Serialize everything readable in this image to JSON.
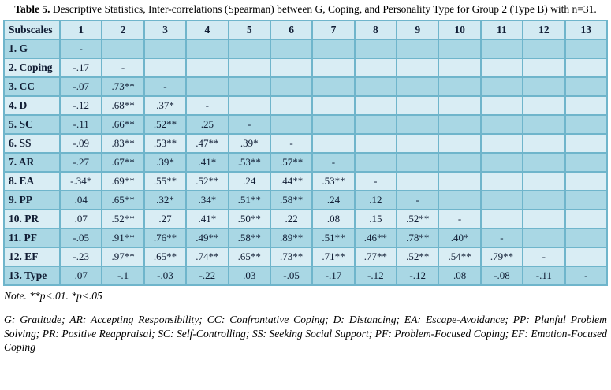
{
  "caption": {
    "label": "Table 5.",
    "text": "Descriptive Statistics, Inter-correlations (Spearman) between G, Coping, and Personality Type for Group 2 (Type B) with n=31."
  },
  "table": {
    "columns": [
      "Subscales",
      "1",
      "2",
      "3",
      "4",
      "5",
      "6",
      "7",
      "8",
      "9",
      "10",
      "11",
      "12",
      "13"
    ],
    "rows": [
      {
        "label": "1. G",
        "values": [
          "-",
          "",
          "",
          "",
          "",
          "",
          "",
          "",
          "",
          "",
          "",
          "",
          ""
        ]
      },
      {
        "label": "2. Coping",
        "values": [
          "-.17",
          "-",
          "",
          "",
          "",
          "",
          "",
          "",
          "",
          "",
          "",
          "",
          ""
        ]
      },
      {
        "label": "3. CC",
        "values": [
          "-.07",
          ".73**",
          "-",
          "",
          "",
          "",
          "",
          "",
          "",
          "",
          "",
          "",
          ""
        ]
      },
      {
        "label": "4. D",
        "values": [
          "-.12",
          ".68**",
          ".37*",
          "-",
          "",
          "",
          "",
          "",
          "",
          "",
          "",
          "",
          ""
        ]
      },
      {
        "label": "5. SC",
        "values": [
          "-.11",
          ".66**",
          ".52**",
          ".25",
          "-",
          "",
          "",
          "",
          "",
          "",
          "",
          "",
          ""
        ]
      },
      {
        "label": "6. SS",
        "values": [
          "-.09",
          ".83**",
          ".53**",
          ".47**",
          ".39*",
          "-",
          "",
          "",
          "",
          "",
          "",
          "",
          ""
        ]
      },
      {
        "label": "7. AR",
        "values": [
          "-.27",
          ".67**",
          ".39*",
          ".41*",
          ".53**",
          ".57**",
          "-",
          "",
          "",
          "",
          "",
          "",
          ""
        ]
      },
      {
        "label": "8. EA",
        "values": [
          "-.34*",
          ".69**",
          ".55**",
          ".52**",
          ".24",
          ".44**",
          ".53**",
          "-",
          "",
          "",
          "",
          "",
          ""
        ]
      },
      {
        "label": "9. PP",
        "values": [
          ".04",
          ".65**",
          ".32*",
          ".34*",
          ".51**",
          ".58**",
          ".24",
          ".12",
          "-",
          "",
          "",
          "",
          ""
        ]
      },
      {
        "label": "10. PR",
        "values": [
          ".07",
          ".52**",
          ".27",
          ".41*",
          ".50**",
          ".22",
          ".08",
          ".15",
          ".52**",
          "-",
          "",
          "",
          ""
        ]
      },
      {
        "label": "11. PF",
        "values": [
          "-.05",
          ".91**",
          ".76**",
          ".49**",
          ".58**",
          ".89**",
          ".51**",
          ".46**",
          ".78**",
          ".40*",
          "-",
          "",
          ""
        ]
      },
      {
        "label": "12. EF",
        "values": [
          "-.23",
          ".97**",
          ".65**",
          ".74**",
          ".65**",
          ".73**",
          ".71**",
          ".77**",
          ".52**",
          ".54**",
          ".79**",
          "-",
          ""
        ]
      },
      {
        "label": "13. Type",
        "values": [
          ".07",
          "-.1",
          "-.03",
          "-.22",
          ".03",
          "-.05",
          "-.17",
          "-.12",
          "-.12",
          ".08",
          "-.08",
          "-.11",
          "-"
        ]
      }
    ]
  },
  "note": "Note. **p<.01. *p<.05",
  "legend": "G: Gratitude; AR: Accepting Responsibility; CC: Confrontative Coping; D: Distancing; EA: Escape-Avoidance; PP: Planful Problem Solving; PR: Positive Reappraisal; SC: Self-Controlling; SS: Seeking Social Support; PF: Problem-Focused Coping; EF: Emotion-Focused Coping",
  "colors": {
    "border": "#6fb5cb",
    "outer_border": "#4a9cba",
    "header_bg": "#d2eaf2",
    "odd_bg": "#a9d7e4",
    "even_bg": "#d9edf4",
    "text": "#101c33"
  }
}
